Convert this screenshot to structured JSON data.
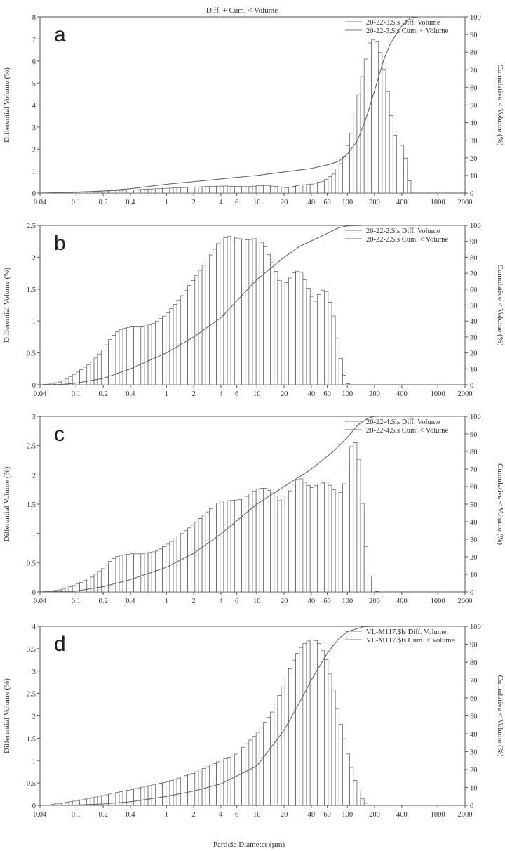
{
  "figure_title": "Diff. + Cum. < Volume",
  "xlabel": "Particle Diameter (µm)",
  "x_ticks": [
    "0.04",
    "0.1",
    "0.2",
    "0.4",
    "1",
    "2",
    "4",
    "6",
    "10",
    "20",
    "40",
    "60",
    "100",
    "200",
    "400",
    "1000",
    "2000"
  ],
  "chart_data": [
    {
      "type": "bar",
      "panel": "a",
      "ylabel": "Differential Volume (%)",
      "y2label": "Cumulative < Volume (%)",
      "xscale": "log",
      "xlim": [
        0.04,
        2000
      ],
      "ylim": [
        0,
        8
      ],
      "y_ticks": [
        "0",
        "1",
        "2",
        "3",
        "4",
        "5",
        "6",
        "7",
        "8"
      ],
      "y2lim": [
        0,
        100
      ],
      "y2_ticks": [
        "0",
        "10",
        "20",
        "30",
        "40",
        "50",
        "60",
        "70",
        "80",
        "90",
        "100"
      ],
      "legend_position": "top-right",
      "series": [
        {
          "name": "20-22-3.$ls Diff. Volume",
          "kind": "bar"
        },
        {
          "name": "20-22-3.$ls Cum. < Volume",
          "kind": "line"
        }
      ],
      "diff_points": [
        [
          0.04,
          0
        ],
        [
          0.06,
          0.01
        ],
        [
          0.1,
          0.05
        ],
        [
          0.2,
          0.09
        ],
        [
          0.4,
          0.14
        ],
        [
          0.8,
          0.2
        ],
        [
          1.5,
          0.25
        ],
        [
          3,
          0.3
        ],
        [
          4.5,
          0.32
        ],
        [
          6,
          0.3
        ],
        [
          8,
          0.29
        ],
        [
          12,
          0.35
        ],
        [
          16,
          0.3
        ],
        [
          22,
          0.24
        ],
        [
          30,
          0.36
        ],
        [
          40,
          0.4
        ],
        [
          55,
          0.55
        ],
        [
          70,
          0.85
        ],
        [
          90,
          1.5
        ],
        [
          110,
          2.6
        ],
        [
          130,
          4.2
        ],
        [
          155,
          5.8
        ],
        [
          180,
          7.0
        ],
        [
          210,
          6.9
        ],
        [
          240,
          6.2
        ],
        [
          270,
          5.0
        ],
        [
          300,
          3.7
        ],
        [
          330,
          2.7
        ],
        [
          360,
          2.3
        ],
        [
          400,
          2.2
        ],
        [
          440,
          1.6
        ],
        [
          480,
          0.6
        ],
        [
          520,
          0.05
        ],
        [
          560,
          0
        ]
      ],
      "cum_points": [
        [
          0.04,
          0
        ],
        [
          0.1,
          0.5
        ],
        [
          0.2,
          1.2
        ],
        [
          0.4,
          2.5
        ],
        [
          1,
          5
        ],
        [
          2,
          6.5
        ],
        [
          4,
          8
        ],
        [
          10,
          10
        ],
        [
          20,
          12
        ],
        [
          40,
          14
        ],
        [
          60,
          16
        ],
        [
          80,
          18
        ],
        [
          100,
          22
        ],
        [
          130,
          30
        ],
        [
          160,
          42
        ],
        [
          200,
          58
        ],
        [
          250,
          75
        ],
        [
          300,
          85
        ],
        [
          400,
          95
        ],
        [
          500,
          99.5
        ],
        [
          600,
          100
        ],
        [
          2000,
          100
        ]
      ]
    },
    {
      "type": "bar",
      "panel": "b",
      "ylabel": "Differential Volume (%)",
      "y2label": "Cumulative < Volume (%)",
      "xscale": "log",
      "xlim": [
        0.04,
        2000
      ],
      "ylim": [
        0,
        2.5
      ],
      "y_ticks": [
        "0",
        "0.5",
        "1",
        "1.5",
        "2",
        "2.5"
      ],
      "y2lim": [
        0,
        100
      ],
      "y2_ticks": [
        "0",
        "10",
        "20",
        "30",
        "40",
        "50",
        "60",
        "70",
        "80",
        "90",
        "100"
      ],
      "legend_position": "top-right",
      "series": [
        {
          "name": "20-22-2.$ls Diff. Volume",
          "kind": "bar"
        },
        {
          "name": "20-22-2.$ls Cum. < Volume",
          "kind": "line"
        }
      ],
      "diff_points": [
        [
          0.04,
          0
        ],
        [
          0.05,
          0.01
        ],
        [
          0.07,
          0.05
        ],
        [
          0.1,
          0.18
        ],
        [
          0.15,
          0.35
        ],
        [
          0.2,
          0.55
        ],
        [
          0.25,
          0.75
        ],
        [
          0.3,
          0.86
        ],
        [
          0.4,
          0.91
        ],
        [
          0.55,
          0.91
        ],
        [
          0.7,
          0.95
        ],
        [
          1,
          1.1
        ],
        [
          1.5,
          1.4
        ],
        [
          2,
          1.65
        ],
        [
          3,
          2.0
        ],
        [
          4,
          2.28
        ],
        [
          5,
          2.33
        ],
        [
          6,
          2.3
        ],
        [
          8,
          2.27
        ],
        [
          10,
          2.3
        ],
        [
          12,
          2.2
        ],
        [
          15,
          1.9
        ],
        [
          18,
          1.62
        ],
        [
          22,
          1.6
        ],
        [
          25,
          1.75
        ],
        [
          30,
          1.8
        ],
        [
          35,
          1.6
        ],
        [
          40,
          1.4
        ],
        [
          45,
          1.3
        ],
        [
          50,
          1.45
        ],
        [
          55,
          1.5
        ],
        [
          60,
          1.45
        ],
        [
          70,
          1.1
        ],
        [
          80,
          0.6
        ],
        [
          90,
          0.2
        ],
        [
          100,
          0.02
        ],
        [
          110,
          0
        ]
      ],
      "cum_points": [
        [
          0.04,
          0
        ],
        [
          0.07,
          0.2
        ],
        [
          0.1,
          1
        ],
        [
          0.2,
          4
        ],
        [
          0.4,
          10
        ],
        [
          1,
          20
        ],
        [
          2,
          30
        ],
        [
          4,
          42
        ],
        [
          10,
          66
        ],
        [
          20,
          80
        ],
        [
          30,
          87
        ],
        [
          60,
          95
        ],
        [
          80,
          98.5
        ],
        [
          100,
          99.7
        ],
        [
          150,
          100
        ],
        [
          2000,
          100
        ]
      ]
    },
    {
      "type": "bar",
      "panel": "c",
      "ylabel": "Differential Volume (%)",
      "y2label": "Cumulative < Volume (%)",
      "xscale": "log",
      "xlim": [
        0.04,
        2000
      ],
      "ylim": [
        0,
        3
      ],
      "y_ticks": [
        "0",
        "0.5",
        "1",
        "1.5",
        "2",
        "2.5",
        "3"
      ],
      "y2lim": [
        0,
        100
      ],
      "y2_ticks": [
        "0",
        "10",
        "20",
        "30",
        "40",
        "50",
        "60",
        "70",
        "80",
        "90",
        "100"
      ],
      "legend_position": "top-right",
      "series": [
        {
          "name": "20-22-4.$ls Diff. Volume",
          "kind": "bar"
        },
        {
          "name": "20-22-4.$ls Cum. < Volume",
          "kind": "line"
        }
      ],
      "diff_points": [
        [
          0.04,
          0
        ],
        [
          0.05,
          0.01
        ],
        [
          0.07,
          0.04
        ],
        [
          0.1,
          0.12
        ],
        [
          0.15,
          0.25
        ],
        [
          0.2,
          0.4
        ],
        [
          0.25,
          0.55
        ],
        [
          0.3,
          0.62
        ],
        [
          0.4,
          0.65
        ],
        [
          0.55,
          0.65
        ],
        [
          0.8,
          0.7
        ],
        [
          1,
          0.8
        ],
        [
          1.5,
          1.0
        ],
        [
          2,
          1.15
        ],
        [
          3,
          1.4
        ],
        [
          4,
          1.55
        ],
        [
          5,
          1.56
        ],
        [
          7,
          1.58
        ],
        [
          10,
          1.75
        ],
        [
          12,
          1.78
        ],
        [
          15,
          1.7
        ],
        [
          18,
          1.55
        ],
        [
          22,
          1.65
        ],
        [
          27,
          1.9
        ],
        [
          30,
          1.95
        ],
        [
          35,
          1.85
        ],
        [
          40,
          1.78
        ],
        [
          50,
          1.85
        ],
        [
          60,
          1.88
        ],
        [
          70,
          1.75
        ],
        [
          80,
          1.65
        ],
        [
          90,
          1.75
        ],
        [
          100,
          2.1
        ],
        [
          115,
          2.6
        ],
        [
          130,
          2.5
        ],
        [
          145,
          1.6
        ],
        [
          160,
          0.8
        ],
        [
          180,
          0.15
        ],
        [
          200,
          0.02
        ],
        [
          220,
          0
        ]
      ],
      "cum_points": [
        [
          0.04,
          0
        ],
        [
          0.1,
          0.5
        ],
        [
          0.2,
          3
        ],
        [
          0.4,
          7
        ],
        [
          1,
          14
        ],
        [
          2,
          22
        ],
        [
          4,
          33
        ],
        [
          10,
          50
        ],
        [
          20,
          60
        ],
        [
          40,
          70
        ],
        [
          70,
          80
        ],
        [
          100,
          88
        ],
        [
          130,
          95
        ],
        [
          170,
          99
        ],
        [
          200,
          100
        ],
        [
          2000,
          100
        ]
      ]
    },
    {
      "type": "bar",
      "panel": "d",
      "ylabel": "Differential Volume (%)",
      "y2label": "Cumulative < Volume (%)",
      "xscale": "log",
      "xlim": [
        0.04,
        2000
      ],
      "ylim": [
        0,
        4
      ],
      "y_ticks": [
        "0",
        "0.5",
        "1",
        "1.5",
        "2",
        "2.5",
        "3",
        "3.5",
        "4"
      ],
      "y2lim": [
        0,
        100
      ],
      "y2_ticks": [
        "0",
        "10",
        "20",
        "30",
        "40",
        "50",
        "60",
        "70",
        "80",
        "90",
        "100"
      ],
      "legend_position": "top-right",
      "series": [
        {
          "name": "VL-M117.$ls Diff. Volume",
          "kind": "bar"
        },
        {
          "name": "VL-M117.$ls Cum. < Volume",
          "kind": "line"
        }
      ],
      "diff_points": [
        [
          0.04,
          0
        ],
        [
          0.05,
          0.01
        ],
        [
          0.07,
          0.05
        ],
        [
          0.1,
          0.1
        ],
        [
          0.2,
          0.22
        ],
        [
          0.4,
          0.35
        ],
        [
          1,
          0.52
        ],
        [
          2,
          0.72
        ],
        [
          4,
          1.0
        ],
        [
          6,
          1.15
        ],
        [
          8,
          1.4
        ],
        [
          10,
          1.6
        ],
        [
          15,
          2.1
        ],
        [
          20,
          2.7
        ],
        [
          25,
          3.2
        ],
        [
          30,
          3.5
        ],
        [
          35,
          3.65
        ],
        [
          40,
          3.7
        ],
        [
          45,
          3.68
        ],
        [
          50,
          3.6
        ],
        [
          60,
          3.2
        ],
        [
          70,
          2.6
        ],
        [
          80,
          2.0
        ],
        [
          90,
          1.6
        ],
        [
          100,
          1.2
        ],
        [
          120,
          0.6
        ],
        [
          140,
          0.2
        ],
        [
          160,
          0.05
        ],
        [
          180,
          0
        ]
      ],
      "cum_points": [
        [
          0.04,
          0
        ],
        [
          0.1,
          0.2
        ],
        [
          0.2,
          0.8
        ],
        [
          0.4,
          2
        ],
        [
          1,
          5
        ],
        [
          2,
          8
        ],
        [
          4,
          12
        ],
        [
          10,
          22
        ],
        [
          20,
          42
        ],
        [
          30,
          58
        ],
        [
          40,
          70
        ],
        [
          60,
          85
        ],
        [
          80,
          93
        ],
        [
          100,
          97
        ],
        [
          150,
          99.8
        ],
        [
          200,
          100
        ],
        [
          2000,
          100
        ]
      ]
    }
  ]
}
